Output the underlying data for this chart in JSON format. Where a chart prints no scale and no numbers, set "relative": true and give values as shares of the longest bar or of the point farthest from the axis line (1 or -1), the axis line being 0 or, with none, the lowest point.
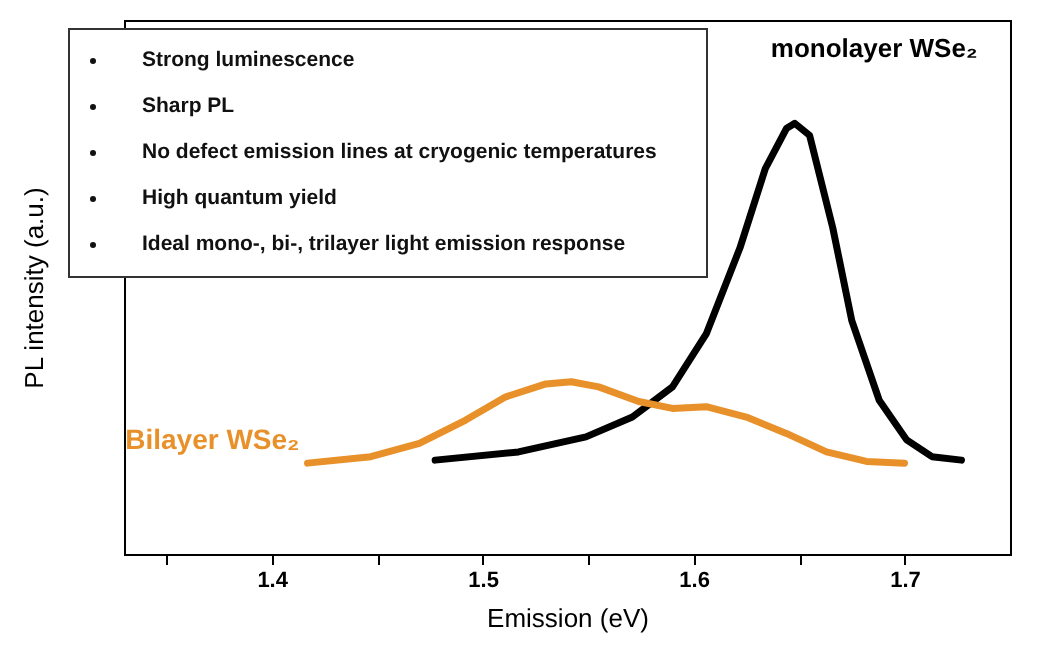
{
  "chart_data": {
    "type": "line",
    "xlabel": "Emission (eV)",
    "ylabel": "PL intensity (a.u.)",
    "relative": true,
    "xlim": [
      1.33,
      1.75
    ],
    "xticks": [
      {
        "value": 1.35,
        "label": null
      },
      1.4,
      {
        "value": 1.45,
        "label": null
      },
      1.5,
      {
        "value": 1.55,
        "label": null
      },
      1.6,
      {
        "value": 1.65,
        "label": null
      },
      1.7
    ],
    "annotations": [
      "Strong luminescence",
      "Sharp PL",
      "No defect emission lines at cryogenic temperatures",
      "High quantum yield",
      "Ideal mono-, bi-, trilayer light emission response"
    ],
    "series": [
      {
        "name": "monolayer WSe₂",
        "color": "#000000",
        "x": [
          1.4775,
          1.517,
          1.549,
          1.571,
          1.59,
          1.606,
          1.622,
          1.634,
          1.644,
          1.648,
          1.655,
          1.666,
          1.675,
          1.688,
          1.701,
          1.713,
          1.727
        ],
        "values": [
          0.218,
          0.237,
          0.272,
          0.318,
          0.388,
          0.511,
          0.711,
          0.895,
          0.988,
          1.0,
          0.972,
          0.757,
          0.542,
          0.357,
          0.265,
          0.226,
          0.218
        ]
      },
      {
        "name": "Bilayer WSe₂",
        "color": "#e8912a",
        "x": [
          1.417,
          1.447,
          1.47,
          1.492,
          1.511,
          1.53,
          1.542,
          1.555,
          1.574,
          1.59,
          1.606,
          1.625,
          1.644,
          1.663,
          1.682,
          1.7
        ],
        "values": [
          0.211,
          0.226,
          0.257,
          0.311,
          0.365,
          0.395,
          0.4,
          0.388,
          0.354,
          0.338,
          0.342,
          0.318,
          0.28,
          0.237,
          0.215,
          0.211
        ]
      }
    ]
  }
}
